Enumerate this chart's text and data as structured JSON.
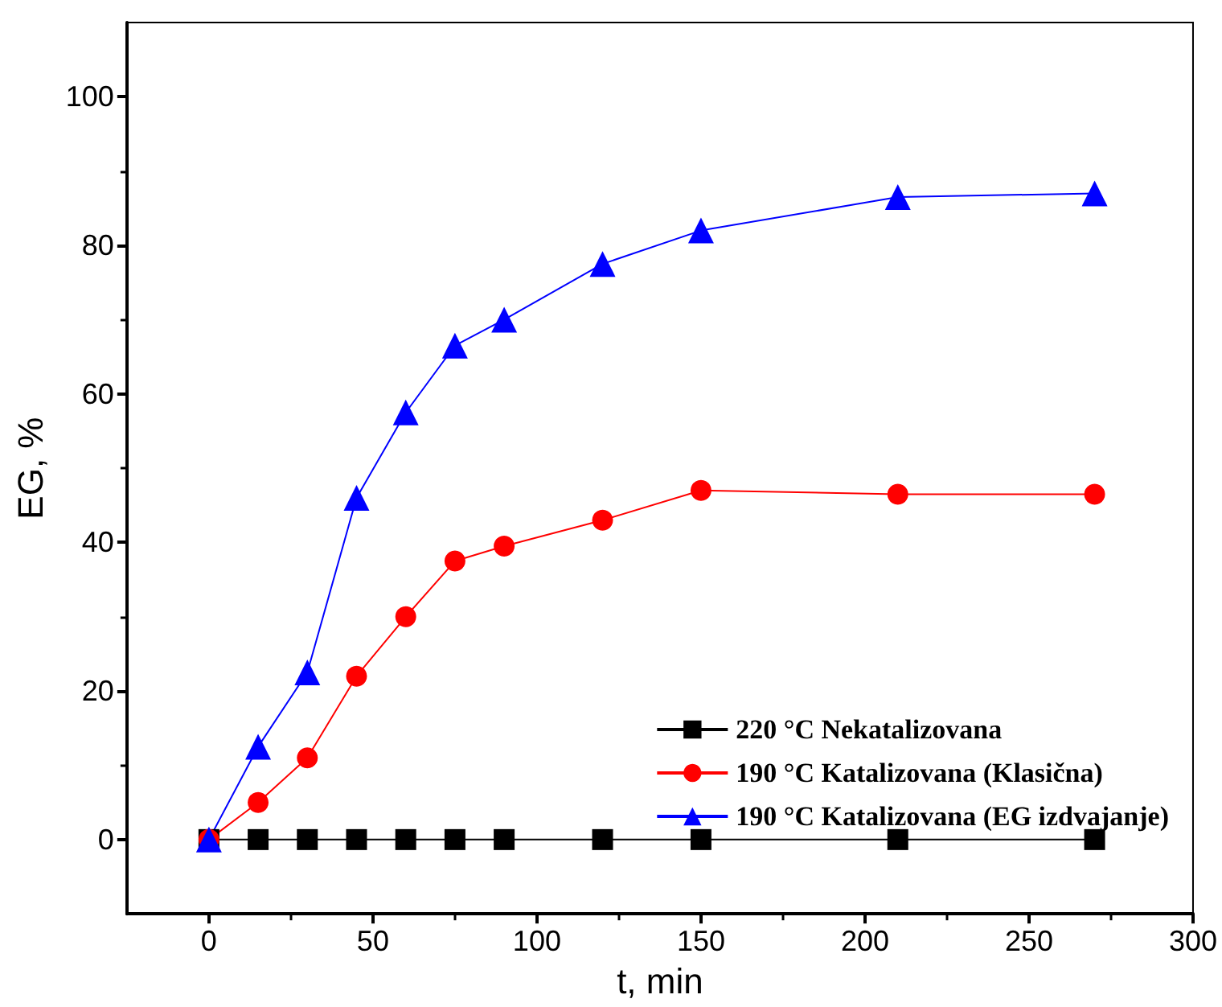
{
  "chart_data": {
    "type": "line",
    "xlabel": "t, min",
    "ylabel": "EG, %",
    "x": [
      0,
      15,
      30,
      45,
      60,
      75,
      90,
      120,
      150,
      210,
      270
    ],
    "series": [
      {
        "name": "220 °C Nekatalizovana",
        "color": "#000000",
        "marker": "square",
        "values": [
          0,
          0,
          0,
          0,
          0,
          0,
          0,
          0,
          0,
          0,
          0
        ]
      },
      {
        "name": "190 °C Katalizovana (Klasična)",
        "color": "#ff0000",
        "marker": "circle",
        "values": [
          0,
          5,
          11,
          22,
          30,
          37.5,
          39.5,
          43,
          47,
          46.5,
          46.5
        ]
      },
      {
        "name": "190 °C Katalizovana (EG izdvajanje)",
        "color": "#0000ff",
        "marker": "triangle",
        "values": [
          0,
          12.5,
          22.5,
          46,
          57.5,
          66.5,
          70,
          77.5,
          82,
          86.5,
          87
        ]
      }
    ],
    "xlim": [
      -25,
      300
    ],
    "xticks": [
      0,
      50,
      100,
      150,
      200,
      250,
      300
    ],
    "ylim": [
      -10,
      110
    ],
    "yticks": [
      0,
      20,
      40,
      60,
      80,
      100
    ],
    "grid": false,
    "legend": "bottom right",
    "line_style": "solid"
  }
}
